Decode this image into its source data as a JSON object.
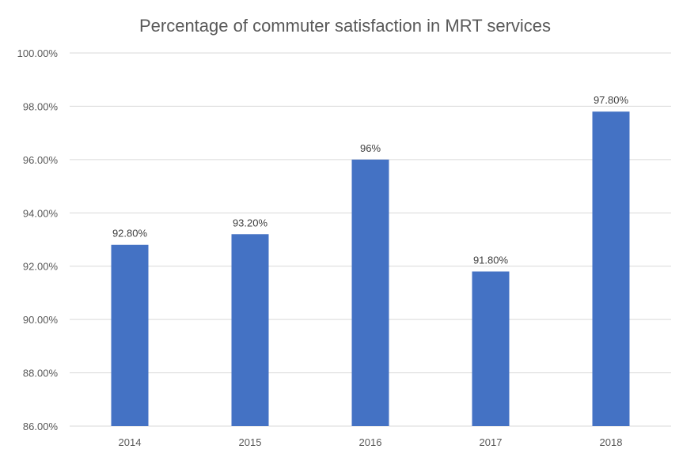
{
  "chart_data": {
    "type": "bar",
    "title": "Percentage of commuter satisfaction in MRT services",
    "categories": [
      "2014",
      "2015",
      "2016",
      "2017",
      "2018"
    ],
    "values": [
      92.8,
      93.2,
      96.0,
      91.8,
      97.8
    ],
    "data_labels": [
      "92.80%",
      "93.20%",
      "96%",
      "91.80%",
      "97.80%"
    ],
    "ylim": [
      86,
      100
    ],
    "y_ticks": [
      86,
      88,
      90,
      92,
      94,
      96,
      98,
      100
    ],
    "y_tick_labels": [
      "86.00%",
      "88.00%",
      "90.00%",
      "92.00%",
      "94.00%",
      "96.00%",
      "98.00%",
      "100.00%"
    ],
    "grid": true,
    "legend": "none",
    "bar_color": "#4472C4"
  }
}
